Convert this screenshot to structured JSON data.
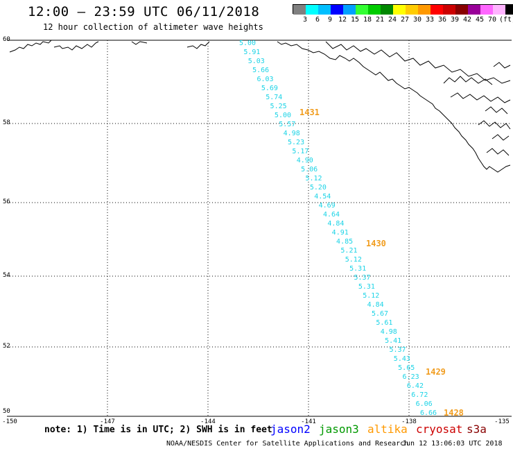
{
  "header": {
    "title": "12:00 – 23:59 UTC 06/11/2018",
    "subtitle": "12 hour collection of altimeter wave heights"
  },
  "color_scale": {
    "colors": [
      "#808080",
      "#00ffff",
      "#00bfff",
      "#0000ff",
      "#00a0ff",
      "#33ff33",
      "#00cc00",
      "#008800",
      "#ffff00",
      "#ffcc00",
      "#ff9900",
      "#ff0000",
      "#cc0000",
      "#880000",
      "#990099",
      "#ff66ff",
      "#ffb3ff",
      "#000000"
    ],
    "labels": [
      "3",
      "6",
      "9",
      "12",
      "15",
      "18",
      "21",
      "24",
      "27",
      "30",
      "33",
      "36",
      "39",
      "42",
      "45",
      "70",
      "(ft)"
    ]
  },
  "axes": {
    "lat_labels": [
      "60",
      "58",
      "56",
      "54",
      "52",
      "50"
    ],
    "lon_labels": [
      "-150",
      "-147",
      "-144",
      "-141",
      "-138",
      "-135"
    ]
  },
  "track": {
    "swh_values": [
      "5.00",
      "5.91",
      "5.03",
      "5.66",
      "6.03",
      "5.69",
      "5.74",
      "5.25",
      "5.00",
      "5.57",
      "4.98",
      "5.23",
      "5.17",
      "4.90",
      "5.06",
      "5.12",
      "5.20",
      "4.54",
      "4.69",
      "4.64",
      "4.84",
      "4.91",
      "4.85",
      "5.21",
      "5.12",
      "5.31",
      "5.37",
      "5.31",
      "5.12",
      "4.84",
      "5.67",
      "5.61",
      "4.98",
      "5.41",
      "5.37",
      "5.43",
      "5.65",
      "6.23",
      "6.42",
      "6.72",
      "6.06",
      "6.66"
    ],
    "time_labels": [
      "1431",
      "1430",
      "1429",
      "1428"
    ]
  },
  "footer": {
    "note": "note: 1) Time is in UTC; 2) SWH is in feet",
    "satellites": [
      {
        "name": "jason2",
        "color": "#0000ff"
      },
      {
        "name": "jason3",
        "color": "#009900"
      },
      {
        "name": "altika",
        "color": "#ff9900"
      },
      {
        "name": "cryosat",
        "color": "#cc0000"
      },
      {
        "name": "s3a",
        "color": "#880000"
      }
    ],
    "credit": "NOAA/NESDIS Center for Satellite Applications and Research",
    "timestamp": "Jun 12 13:06:03 UTC 2018"
  }
}
